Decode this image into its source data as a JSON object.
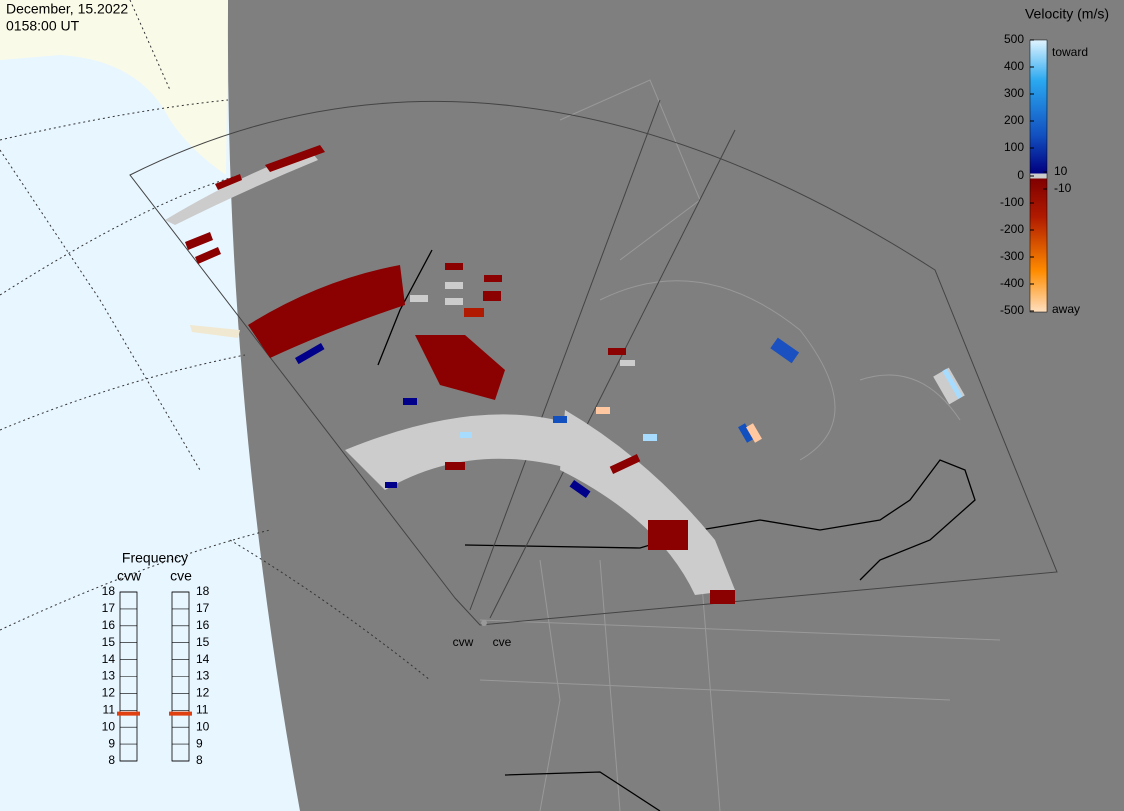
{
  "header": {
    "date": "December, 15.2022",
    "time": "0158:00 UT"
  },
  "velocity_scale": {
    "title": "Velocity (m/s)",
    "ticks": [
      500,
      400,
      300,
      200,
      100,
      0,
      -100,
      -200,
      -300,
      -400,
      -500
    ],
    "near_zero_ticks": [
      10,
      -10
    ],
    "toward": "toward",
    "away": "away"
  },
  "frequency": {
    "title": "Frequency",
    "radars": [
      {
        "name": "cvw",
        "ticks": [
          8,
          9,
          10,
          11,
          12,
          13,
          14,
          15,
          16,
          17,
          18
        ],
        "value": 10.8
      },
      {
        "name": "cve",
        "ticks": [
          8,
          9,
          10,
          11,
          12,
          13,
          14,
          15,
          16,
          17,
          18
        ],
        "value": 10.8
      }
    ]
  },
  "sites": [
    "cvw",
    "cve"
  ]
}
